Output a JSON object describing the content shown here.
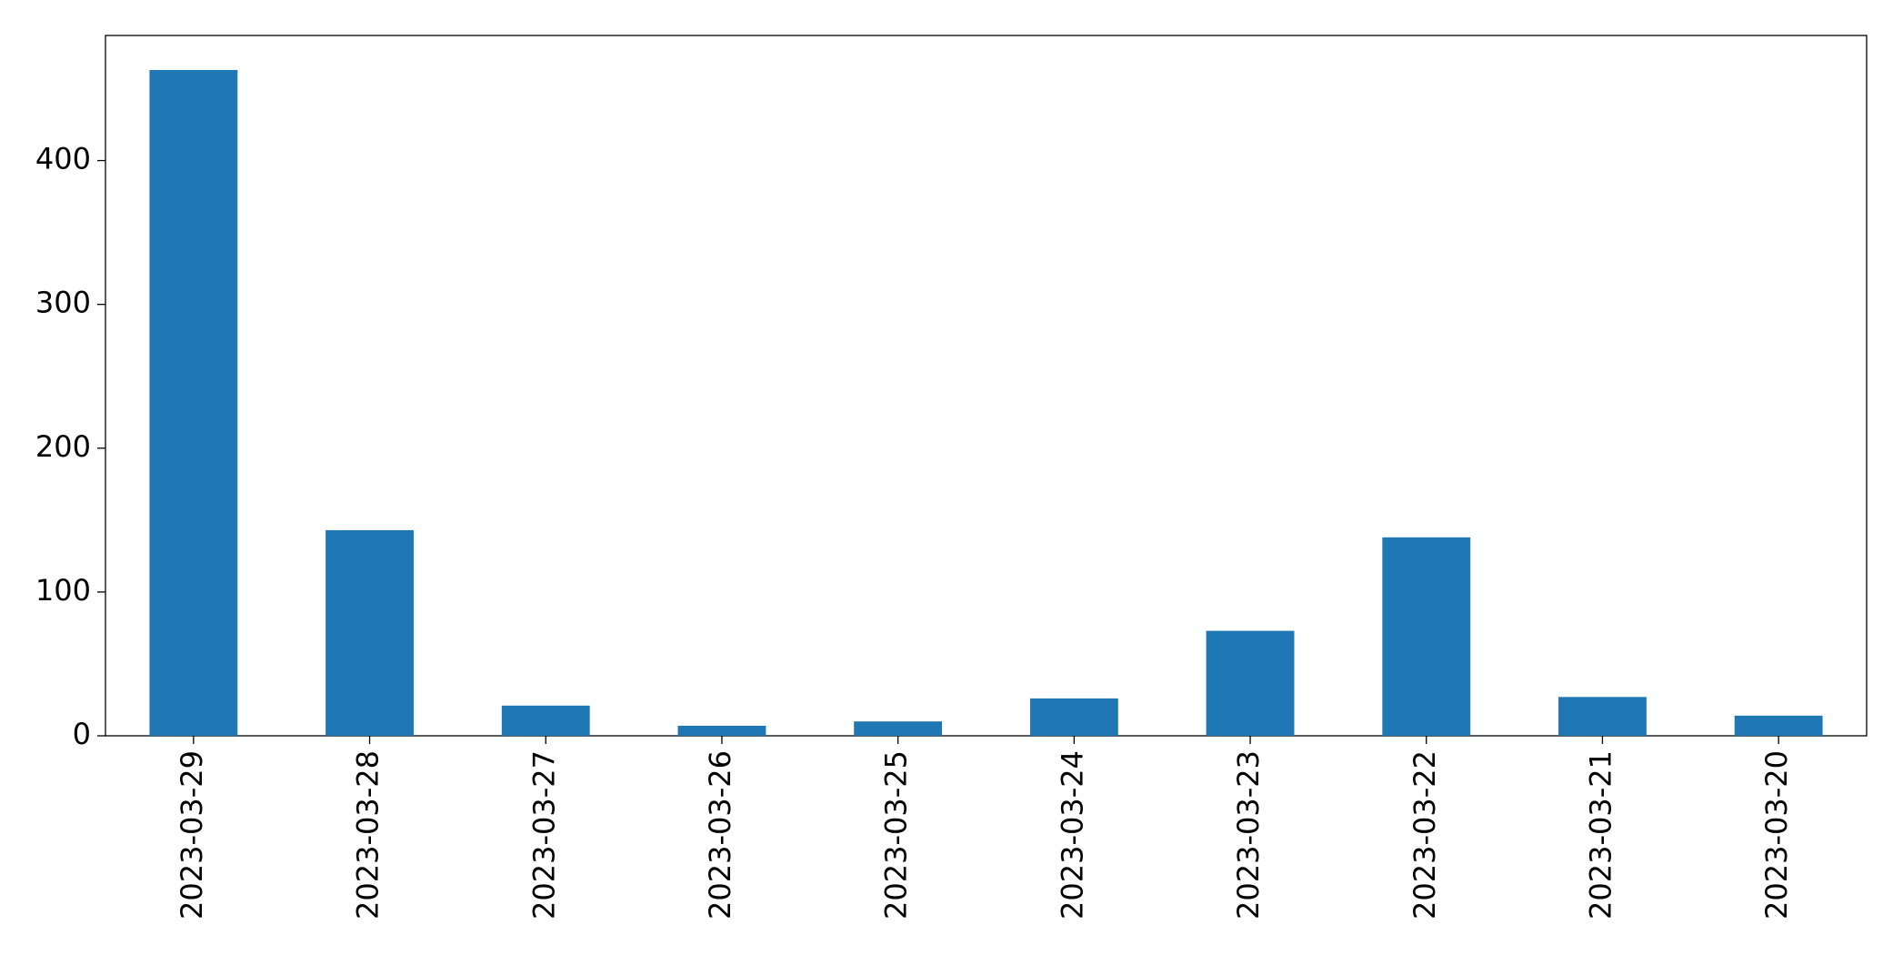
{
  "chart_data": {
    "type": "bar",
    "categories": [
      "2023-03-29",
      "2023-03-28",
      "2023-03-27",
      "2023-03-26",
      "2023-03-25",
      "2023-03-24",
      "2023-03-23",
      "2023-03-22",
      "2023-03-21",
      "2023-03-20"
    ],
    "values": [
      463,
      143,
      21,
      7,
      10,
      26,
      73,
      138,
      27,
      14
    ],
    "color": "#1f77b4",
    "ylim": [
      0,
      487
    ],
    "yticks": [
      0,
      100,
      200,
      300,
      400
    ],
    "grid": false
  }
}
